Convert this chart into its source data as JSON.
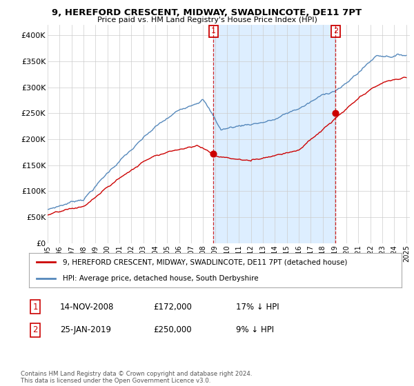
{
  "title": "9, HEREFORD CRESCENT, MIDWAY, SWADLINCOTE, DE11 7PT",
  "subtitle": "Price paid vs. HM Land Registry's House Price Index (HPI)",
  "footer": "Contains HM Land Registry data © Crown copyright and database right 2024.\nThis data is licensed under the Open Government Licence v3.0.",
  "legend_line1": "9, HEREFORD CRESCENT, MIDWAY, SWADLINCOTE, DE11 7PT (detached house)",
  "legend_line2": "HPI: Average price, detached house, South Derbyshire",
  "transaction1_date": "14-NOV-2008",
  "transaction1_price": "£172,000",
  "transaction1_hpi": "17% ↓ HPI",
  "transaction2_date": "25-JAN-2019",
  "transaction2_price": "£250,000",
  "transaction2_hpi": "9% ↓ HPI",
  "house_color": "#cc0000",
  "hpi_color": "#5588bb",
  "shade_color": "#ddeeff",
  "vline_color": "#cc0000",
  "background_color": "#ffffff",
  "grid_color": "#cccccc",
  "ylim": [
    0,
    420000
  ],
  "yticks": [
    0,
    50000,
    100000,
    150000,
    200000,
    250000,
    300000,
    350000,
    400000
  ],
  "ytick_labels": [
    "£0",
    "£50K",
    "£100K",
    "£150K",
    "£200K",
    "£250K",
    "£300K",
    "£350K",
    "£400K"
  ],
  "t1_year": 2008.88,
  "t2_year": 2019.08,
  "t1_price": 172000,
  "t2_price": 250000
}
